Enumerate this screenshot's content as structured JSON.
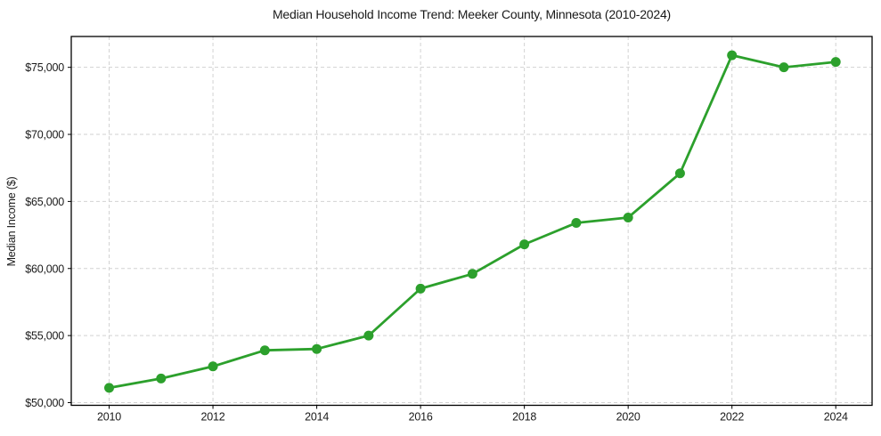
{
  "chart_data": {
    "type": "line",
    "title": "Median Household Income Trend: Meeker County, Minnesota (2010-2024)",
    "xlabel": "",
    "ylabel": "Median Income ($)",
    "x": [
      2010,
      2011,
      2012,
      2013,
      2014,
      2015,
      2016,
      2017,
      2018,
      2019,
      2020,
      2021,
      2022,
      2023,
      2024
    ],
    "values": [
      51100,
      51800,
      52700,
      53900,
      54000,
      55000,
      58500,
      59600,
      61800,
      63400,
      63800,
      67100,
      75900,
      75000,
      75400
    ],
    "series_name": "Median household income",
    "xlim": [
      2009.27,
      2024.7
    ],
    "ylim": [
      49800,
      77300
    ],
    "xticks": [
      2010,
      2012,
      2014,
      2016,
      2018,
      2020,
      2022,
      2024
    ],
    "xtick_labels": [
      "2010",
      "2012",
      "2014",
      "2016",
      "2018",
      "2020",
      "2022",
      "2024"
    ],
    "yticks": [
      50000,
      55000,
      60000,
      65000,
      70000,
      75000
    ],
    "ytick_labels": [
      "$50,000",
      "$55,000",
      "$60,000",
      "$65,000",
      "$70,000",
      "$75,000"
    ],
    "grid": true,
    "grid_style": "dashed",
    "legend": false,
    "colors": {
      "line": "#2ca02c",
      "marker": "#2ca02c",
      "grid": "#d2d2d2",
      "spine": "#000000",
      "text": "#1a1a1a",
      "background": "#ffffff"
    }
  }
}
